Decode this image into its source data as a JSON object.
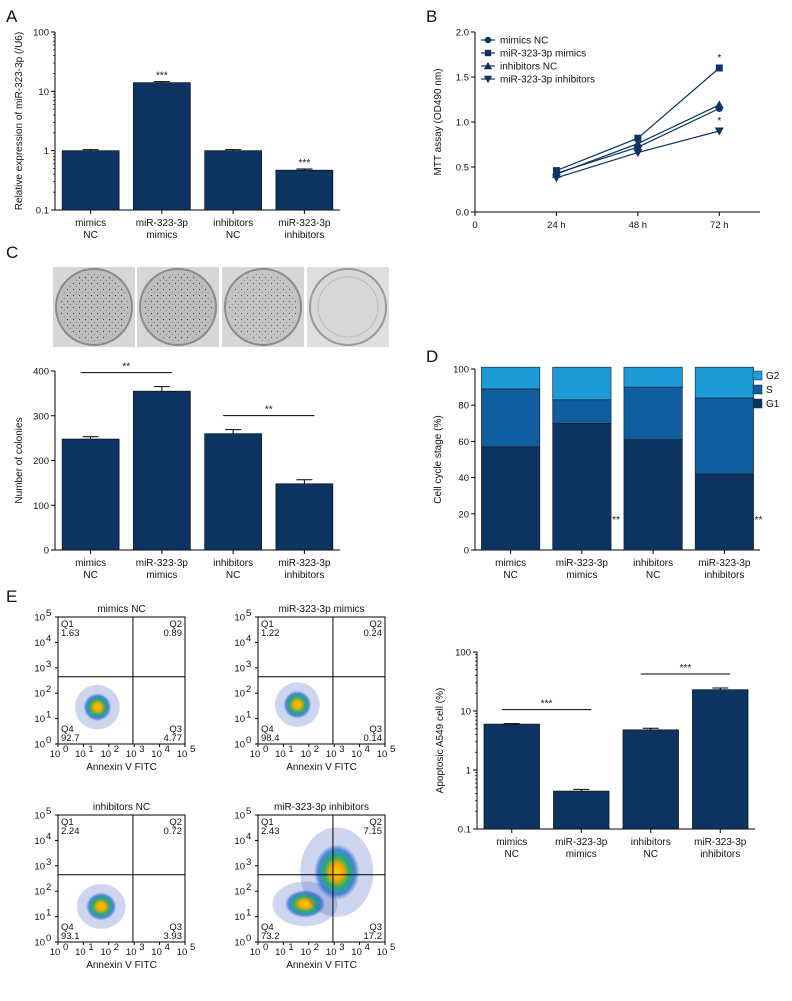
{
  "panels": {
    "a": "A",
    "b": "B",
    "c": "C",
    "d": "D",
    "e": "E"
  },
  "colors": {
    "bar": "#0d3461",
    "stackG1": "#0c3460",
    "stackS": "#0e5ea0",
    "stackG2": "#1e9ad8",
    "axis": "#000000"
  },
  "chart_data": [
    {
      "id": "A",
      "type": "bar",
      "yscale": "log",
      "ylim": [
        0.1,
        100
      ],
      "ylabel": "Relative expression of miR-323-3p (/U6)",
      "yticks": [
        {
          "v": 100,
          "label": "100"
        },
        {
          "v": 10,
          "label": "10"
        },
        {
          "v": 1,
          "label": "1"
        },
        {
          "v": 0.1,
          "label": "0.1"
        }
      ],
      "categories": [
        [
          "mimics",
          "NC"
        ],
        [
          "miR-323-3p",
          "mimics"
        ],
        [
          "inhibitors",
          "NC"
        ],
        [
          "miR-323-3p",
          "inhibitors"
        ]
      ],
      "values": [
        1.0,
        14.0,
        1.0,
        0.47
      ],
      "errors": [
        0.04,
        0.6,
        0.04,
        0.02
      ],
      "annotations": [
        "",
        "***",
        "",
        "***"
      ]
    },
    {
      "id": "B",
      "type": "line",
      "xlim": [
        0,
        84
      ],
      "ylim": [
        0,
        2.0
      ],
      "ylabel": "MTT assay (OD490 nm)",
      "x": [
        24,
        48,
        72
      ],
      "xticks": [
        {
          "v": 0,
          "label": "0"
        },
        {
          "v": 24,
          "label": "24 h"
        },
        {
          "v": 48,
          "label": "48 h"
        },
        {
          "v": 72,
          "label": "72 h"
        }
      ],
      "yticks": [
        {
          "v": 0,
          "label": "0.0"
        },
        {
          "v": 0.5,
          "label": "0.5"
        },
        {
          "v": 1.0,
          "label": "1.0"
        },
        {
          "v": 1.5,
          "label": "1.5"
        },
        {
          "v": 2.0,
          "label": "2.0"
        }
      ],
      "series": [
        {
          "name": "mimics NC",
          "marker": "circle",
          "values": [
            0.43,
            0.72,
            1.15
          ]
        },
        {
          "name": "miR-323-3p mimics",
          "marker": "square",
          "values": [
            0.46,
            0.82,
            1.6
          ]
        },
        {
          "name": "inhibitors NC",
          "marker": "triangle",
          "values": [
            0.42,
            0.76,
            1.19
          ]
        },
        {
          "name": "miR-323-3p inhibitors",
          "marker": "tridown",
          "values": [
            0.38,
            0.66,
            0.9
          ]
        }
      ],
      "annotations": [
        {
          "x": 72,
          "y": 1.6,
          "text": "*"
        },
        {
          "x": 72,
          "y": 0.9,
          "text": "*"
        }
      ]
    },
    {
      "id": "C",
      "type": "bar",
      "ylim": [
        0,
        400
      ],
      "ylabel": "Number of colonies",
      "yticks": [
        {
          "v": 0,
          "label": "0"
        },
        {
          "v": 100,
          "label": "100"
        },
        {
          "v": 200,
          "label": "200"
        },
        {
          "v": 300,
          "label": "300"
        },
        {
          "v": 400,
          "label": "400"
        }
      ],
      "categories": [
        [
          "mimics",
          "NC"
        ],
        [
          "miR-323-3p",
          "mimics"
        ],
        [
          "inhibitors",
          "NC"
        ],
        [
          "miR-323-3p",
          "inhibitors"
        ]
      ],
      "values": [
        248,
        355,
        260,
        148
      ],
      "errors": [
        5,
        10,
        9,
        9
      ],
      "brackets": [
        {
          "from": 0,
          "to": 1,
          "text": "**"
        },
        {
          "from": 2,
          "to": 3,
          "text": "**"
        }
      ]
    },
    {
      "id": "D",
      "type": "bar",
      "stacked": true,
      "ylim": [
        0,
        100
      ],
      "ylabel": "Cell cycle stage (%)",
      "yticks": [
        {
          "v": 0,
          "label": "0"
        },
        {
          "v": 20,
          "label": "20"
        },
        {
          "v": 40,
          "label": "40"
        },
        {
          "v": 60,
          "label": "60"
        },
        {
          "v": 80,
          "label": "80"
        },
        {
          "v": 100,
          "label": "100"
        }
      ],
      "categories": [
        [
          "mimics",
          "NC"
        ],
        [
          "miR-323-3p",
          "mimics"
        ],
        [
          "inhibitors",
          "NC"
        ],
        [
          "miR-323-3p",
          "inhibitors"
        ]
      ],
      "series": [
        {
          "name": "G1",
          "values": [
            57,
            70,
            61,
            42
          ]
        },
        {
          "name": "S",
          "values": [
            32,
            13,
            29,
            42
          ]
        },
        {
          "name": "G2",
          "values": [
            12,
            18,
            11,
            17
          ]
        }
      ],
      "legend_order": [
        "G2",
        "S",
        "G1"
      ],
      "annotations": [
        {
          "cat": 1,
          "text": "**"
        },
        {
          "cat": 3,
          "text": "**"
        }
      ]
    },
    {
      "id": "E",
      "type": "bar",
      "yscale": "log",
      "ylim": [
        0.1,
        100
      ],
      "ylabel": "Apoptosic A549 cell (%)",
      "yticks": [
        {
          "v": 100,
          "label": "100"
        },
        {
          "v": 10,
          "label": "10"
        },
        {
          "v": 1,
          "label": "1"
        },
        {
          "v": 0.1,
          "label": "0.1"
        }
      ],
      "categories": [
        [
          "mimics",
          "NC"
        ],
        [
          "miR-323-3p",
          "mimics"
        ],
        [
          "inhibitors",
          "NC"
        ],
        [
          "miR-323-3p",
          "inhibitors"
        ]
      ],
      "values": [
        6.0,
        0.44,
        4.8,
        23.0
      ],
      "errors": [
        0.1,
        0.03,
        0.3,
        1.5
      ],
      "brackets": [
        {
          "from": 0,
          "to": 1,
          "text": "***"
        },
        {
          "from": 2,
          "to": 3,
          "text": "***"
        }
      ]
    }
  ],
  "legendB": [
    "mimics NC",
    "miR-323-3p mimics",
    "inhibitors NC",
    "miR-323-3p inhibitors"
  ],
  "flow": {
    "xlabel": "Annexin V FITC",
    "ticks": [
      "10",
      "10",
      "10",
      "10",
      "10",
      "10"
    ],
    "exps": [
      "0",
      "1",
      "2",
      "3",
      "4",
      "5"
    ],
    "plots": [
      {
        "title": "mimics NC",
        "q1": "1.63",
        "q2": "0.89",
        "q3": "4.77",
        "q4": "92.7"
      },
      {
        "title": "miR-323-3p mimics",
        "q1": "1.22",
        "q2": "0.24",
        "q3": "0.14",
        "q4": "98.4"
      },
      {
        "title": "inhibitors NC",
        "q1": "2.24",
        "q2": "0.72",
        "q3": "3.93",
        "q4": "93.1"
      },
      {
        "title": "miR-323-3p inhibitors",
        "q1": "2.43",
        "q2": "7.15",
        "q3": "17.2",
        "q4": "73.2"
      }
    ],
    "qlabels": {
      "q1": "Q1",
      "q2": "Q2",
      "q3": "Q3",
      "q4": "Q4"
    }
  }
}
